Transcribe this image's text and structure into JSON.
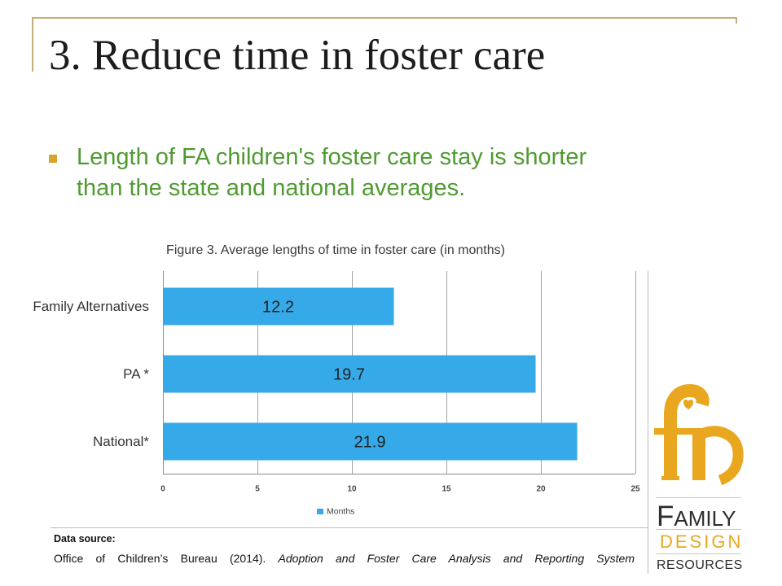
{
  "slide": {
    "title": "3. Reduce time in foster care",
    "bullet": "Length of FA children's foster care stay is shorter than the state and national averages."
  },
  "chart_data": {
    "type": "bar",
    "orientation": "horizontal",
    "title": "Figure 3. Average lengths of time in foster care (in months)",
    "categories": [
      "Family Alternatives",
      "PA *",
      "National*"
    ],
    "series": [
      {
        "name": "Months",
        "values": [
          12.2,
          19.7,
          21.9
        ]
      }
    ],
    "x_ticks": [
      0,
      5,
      10,
      15,
      20,
      25
    ],
    "xlim": [
      0,
      25
    ],
    "grid": true,
    "data_labels": true,
    "legend": "bottom"
  },
  "source": {
    "label": "Data source:",
    "citation": "Office of Children’s Bureau (2014).",
    "citation_italic": "Adoption and Foster Care Analysis and Reporting System"
  },
  "logo": {
    "line1": "FAMILY",
    "line2": "DESIGN",
    "line3": "RESOURCES"
  },
  "colors": {
    "frame": "#c4b07c",
    "title": "#1c1c1c",
    "bullet_marker": "#d6a52c",
    "bullet_text": "#4f9b31",
    "bar": "#36a9e8",
    "gridline": "#a3a3a3",
    "logo_gold": "#e8a71e",
    "logo_dark": "#2d2d2d"
  }
}
